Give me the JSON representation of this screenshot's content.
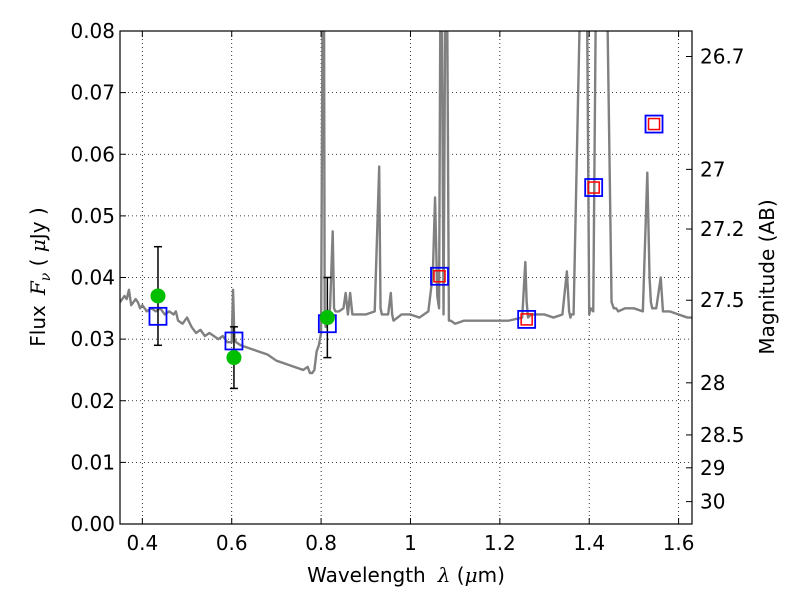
{
  "chart_data": {
    "type": "line",
    "xlabel_text": "Wavelength",
    "xlabel_symbol": "λ",
    "xlabel_unit_open": " (",
    "xlabel_unit_mu": "μ",
    "xlabel_unit_close": "m)",
    "ylabel_text": "Flux",
    "ylabel_symbol": "F",
    "ylabel_symbol_sub": "ν",
    "ylabel_unit_open": " ( ",
    "ylabel_unit_mu": "μ",
    "ylabel_unit_close": "Jy )",
    "y2label": "Magnitude (AB)",
    "xlim": [
      0.35,
      1.63
    ],
    "ylim": [
      0.0,
      0.08
    ],
    "grid": true,
    "x_ticks": [
      {
        "value": 0.4,
        "label": "0.4"
      },
      {
        "value": 0.6,
        "label": "0.6"
      },
      {
        "value": 0.8,
        "label": "0.8"
      },
      {
        "value": 1.0,
        "label": "1"
      },
      {
        "value": 1.2,
        "label": "1.2"
      },
      {
        "value": 1.4,
        "label": "1.4"
      },
      {
        "value": 1.6,
        "label": "1.6"
      }
    ],
    "y_ticks": [
      {
        "value": 0.0,
        "label": "0.00"
      },
      {
        "value": 0.01,
        "label": "0.01"
      },
      {
        "value": 0.02,
        "label": "0.02"
      },
      {
        "value": 0.03,
        "label": "0.03"
      },
      {
        "value": 0.04,
        "label": "0.04"
      },
      {
        "value": 0.05,
        "label": "0.05"
      },
      {
        "value": 0.06,
        "label": "0.06"
      },
      {
        "value": 0.07,
        "label": "0.07"
      },
      {
        "value": 0.08,
        "label": "0.08"
      }
    ],
    "y2_ticks": [
      {
        "mag": 26.7,
        "label": "26.7"
      },
      {
        "mag": 27.0,
        "label": "27"
      },
      {
        "mag": 27.2,
        "label": "27.2"
      },
      {
        "mag": 27.5,
        "label": "27.5"
      },
      {
        "mag": 28.0,
        "label": "28"
      },
      {
        "mag": 28.5,
        "label": "28.5"
      },
      {
        "mag": 29.0,
        "label": "29"
      },
      {
        "mag": 30.0,
        "label": "30"
      }
    ],
    "series": [
      {
        "kind": "model_spectrum",
        "color": "#808080",
        "x": [
          0.35,
          0.36,
          0.365,
          0.37,
          0.375,
          0.38,
          0.385,
          0.39,
          0.395,
          0.4,
          0.41,
          0.42,
          0.43,
          0.44,
          0.45,
          0.46,
          0.47,
          0.475,
          0.48,
          0.49,
          0.5,
          0.51,
          0.52,
          0.53,
          0.54,
          0.55,
          0.56,
          0.57,
          0.58,
          0.59,
          0.6,
          0.603,
          0.606,
          0.61,
          0.62,
          0.64,
          0.66,
          0.68,
          0.7,
          0.72,
          0.74,
          0.76,
          0.77,
          0.775,
          0.78,
          0.785,
          0.79,
          0.795,
          0.8,
          0.8035,
          0.805,
          0.8065,
          0.808,
          0.81,
          0.815,
          0.82,
          0.826,
          0.829,
          0.832,
          0.84,
          0.85,
          0.855,
          0.86,
          0.865,
          0.87,
          0.88,
          0.9,
          0.92,
          0.93,
          0.933,
          0.936,
          0.94,
          0.95,
          0.956,
          0.959,
          0.962,
          0.98,
          1.0,
          1.02,
          1.04,
          1.05,
          1.055,
          1.06,
          1.064,
          1.067,
          1.07,
          1.074,
          1.078,
          1.082,
          1.086,
          1.09,
          1.1,
          1.12,
          1.15,
          1.18,
          1.2,
          1.22,
          1.25,
          1.257,
          1.26,
          1.263,
          1.27,
          1.3,
          1.32,
          1.34,
          1.35,
          1.355,
          1.358,
          1.36,
          1.365,
          1.38,
          1.395,
          1.4,
          1.403,
          1.409,
          1.415,
          1.42,
          1.44,
          1.45,
          1.455,
          1.46,
          1.465,
          1.48,
          1.5,
          1.52,
          1.53,
          1.535,
          1.538,
          1.541,
          1.545,
          1.55,
          1.56,
          1.565,
          1.57,
          1.58,
          1.6,
          1.62,
          1.63
        ],
        "y": [
          0.036,
          0.037,
          0.0365,
          0.038,
          0.0355,
          0.036,
          0.0365,
          0.036,
          0.035,
          0.0355,
          0.0345,
          0.035,
          0.0345,
          0.035,
          0.034,
          0.0345,
          0.034,
          0.0345,
          0.033,
          0.0325,
          0.0335,
          0.032,
          0.031,
          0.0315,
          0.0305,
          0.031,
          0.0305,
          0.03,
          0.0305,
          0.0295,
          0.0295,
          0.038,
          0.03,
          0.0295,
          0.029,
          0.0285,
          0.028,
          0.0275,
          0.0265,
          0.026,
          0.0255,
          0.025,
          0.0255,
          0.0245,
          0.0245,
          0.025,
          0.028,
          0.029,
          0.031,
          0.08,
          0.08,
          0.08,
          0.035,
          0.032,
          0.033,
          0.035,
          0.0475,
          0.035,
          0.0345,
          0.0345,
          0.035,
          0.0375,
          0.034,
          0.0375,
          0.034,
          0.034,
          0.034,
          0.0345,
          0.058,
          0.035,
          0.034,
          0.034,
          0.034,
          0.0375,
          0.034,
          0.033,
          0.034,
          0.034,
          0.0335,
          0.0345,
          0.0405,
          0.053,
          0.037,
          0.035,
          0.08,
          0.08,
          0.034,
          0.08,
          0.08,
          0.033,
          0.033,
          0.0325,
          0.033,
          0.033,
          0.033,
          0.033,
          0.033,
          0.0335,
          0.0425,
          0.036,
          0.0335,
          0.034,
          0.034,
          0.0335,
          0.034,
          0.041,
          0.0345,
          0.0335,
          0.034,
          0.034,
          0.08,
          0.08,
          0.034,
          0.035,
          0.0345,
          0.08,
          0.08,
          0.08,
          0.036,
          0.035,
          0.035,
          0.0345,
          0.035,
          0.035,
          0.0345,
          0.057,
          0.04,
          0.036,
          0.035,
          0.035,
          0.035,
          0.04,
          0.0345,
          0.0345,
          0.0345,
          0.034,
          0.0335,
          0.0335
        ]
      }
    ],
    "blue_squares": [
      {
        "x": 0.435,
        "y": 0.0337
      },
      {
        "x": 0.605,
        "y": 0.0297
      },
      {
        "x": 0.814,
        "y": 0.0325
      },
      {
        "x": 1.065,
        "y": 0.0402
      },
      {
        "x": 1.26,
        "y": 0.0332
      },
      {
        "x": 1.41,
        "y": 0.0546
      },
      {
        "x": 1.545,
        "y": 0.0649
      }
    ],
    "red_squares": [
      {
        "x": 1.065,
        "y": 0.0402
      },
      {
        "x": 1.26,
        "y": 0.0332
      },
      {
        "x": 1.41,
        "y": 0.0546
      },
      {
        "x": 1.545,
        "y": 0.0649
      }
    ],
    "observed_points": [
      {
        "x": 0.435,
        "y": 0.037,
        "err_low": 0.029,
        "err_high": 0.045
      },
      {
        "x": 0.605,
        "y": 0.027,
        "err_low": 0.022,
        "err_high": 0.032
      },
      {
        "x": 0.814,
        "y": 0.0335,
        "err_low": 0.027,
        "err_high": 0.04
      }
    ],
    "colors": {
      "spectrum": "#808080",
      "blue_square": "#0000ff",
      "red_square": "#ff0000",
      "observed": "#00bf00",
      "errorbar": "#000000",
      "grid": "#000000"
    }
  }
}
